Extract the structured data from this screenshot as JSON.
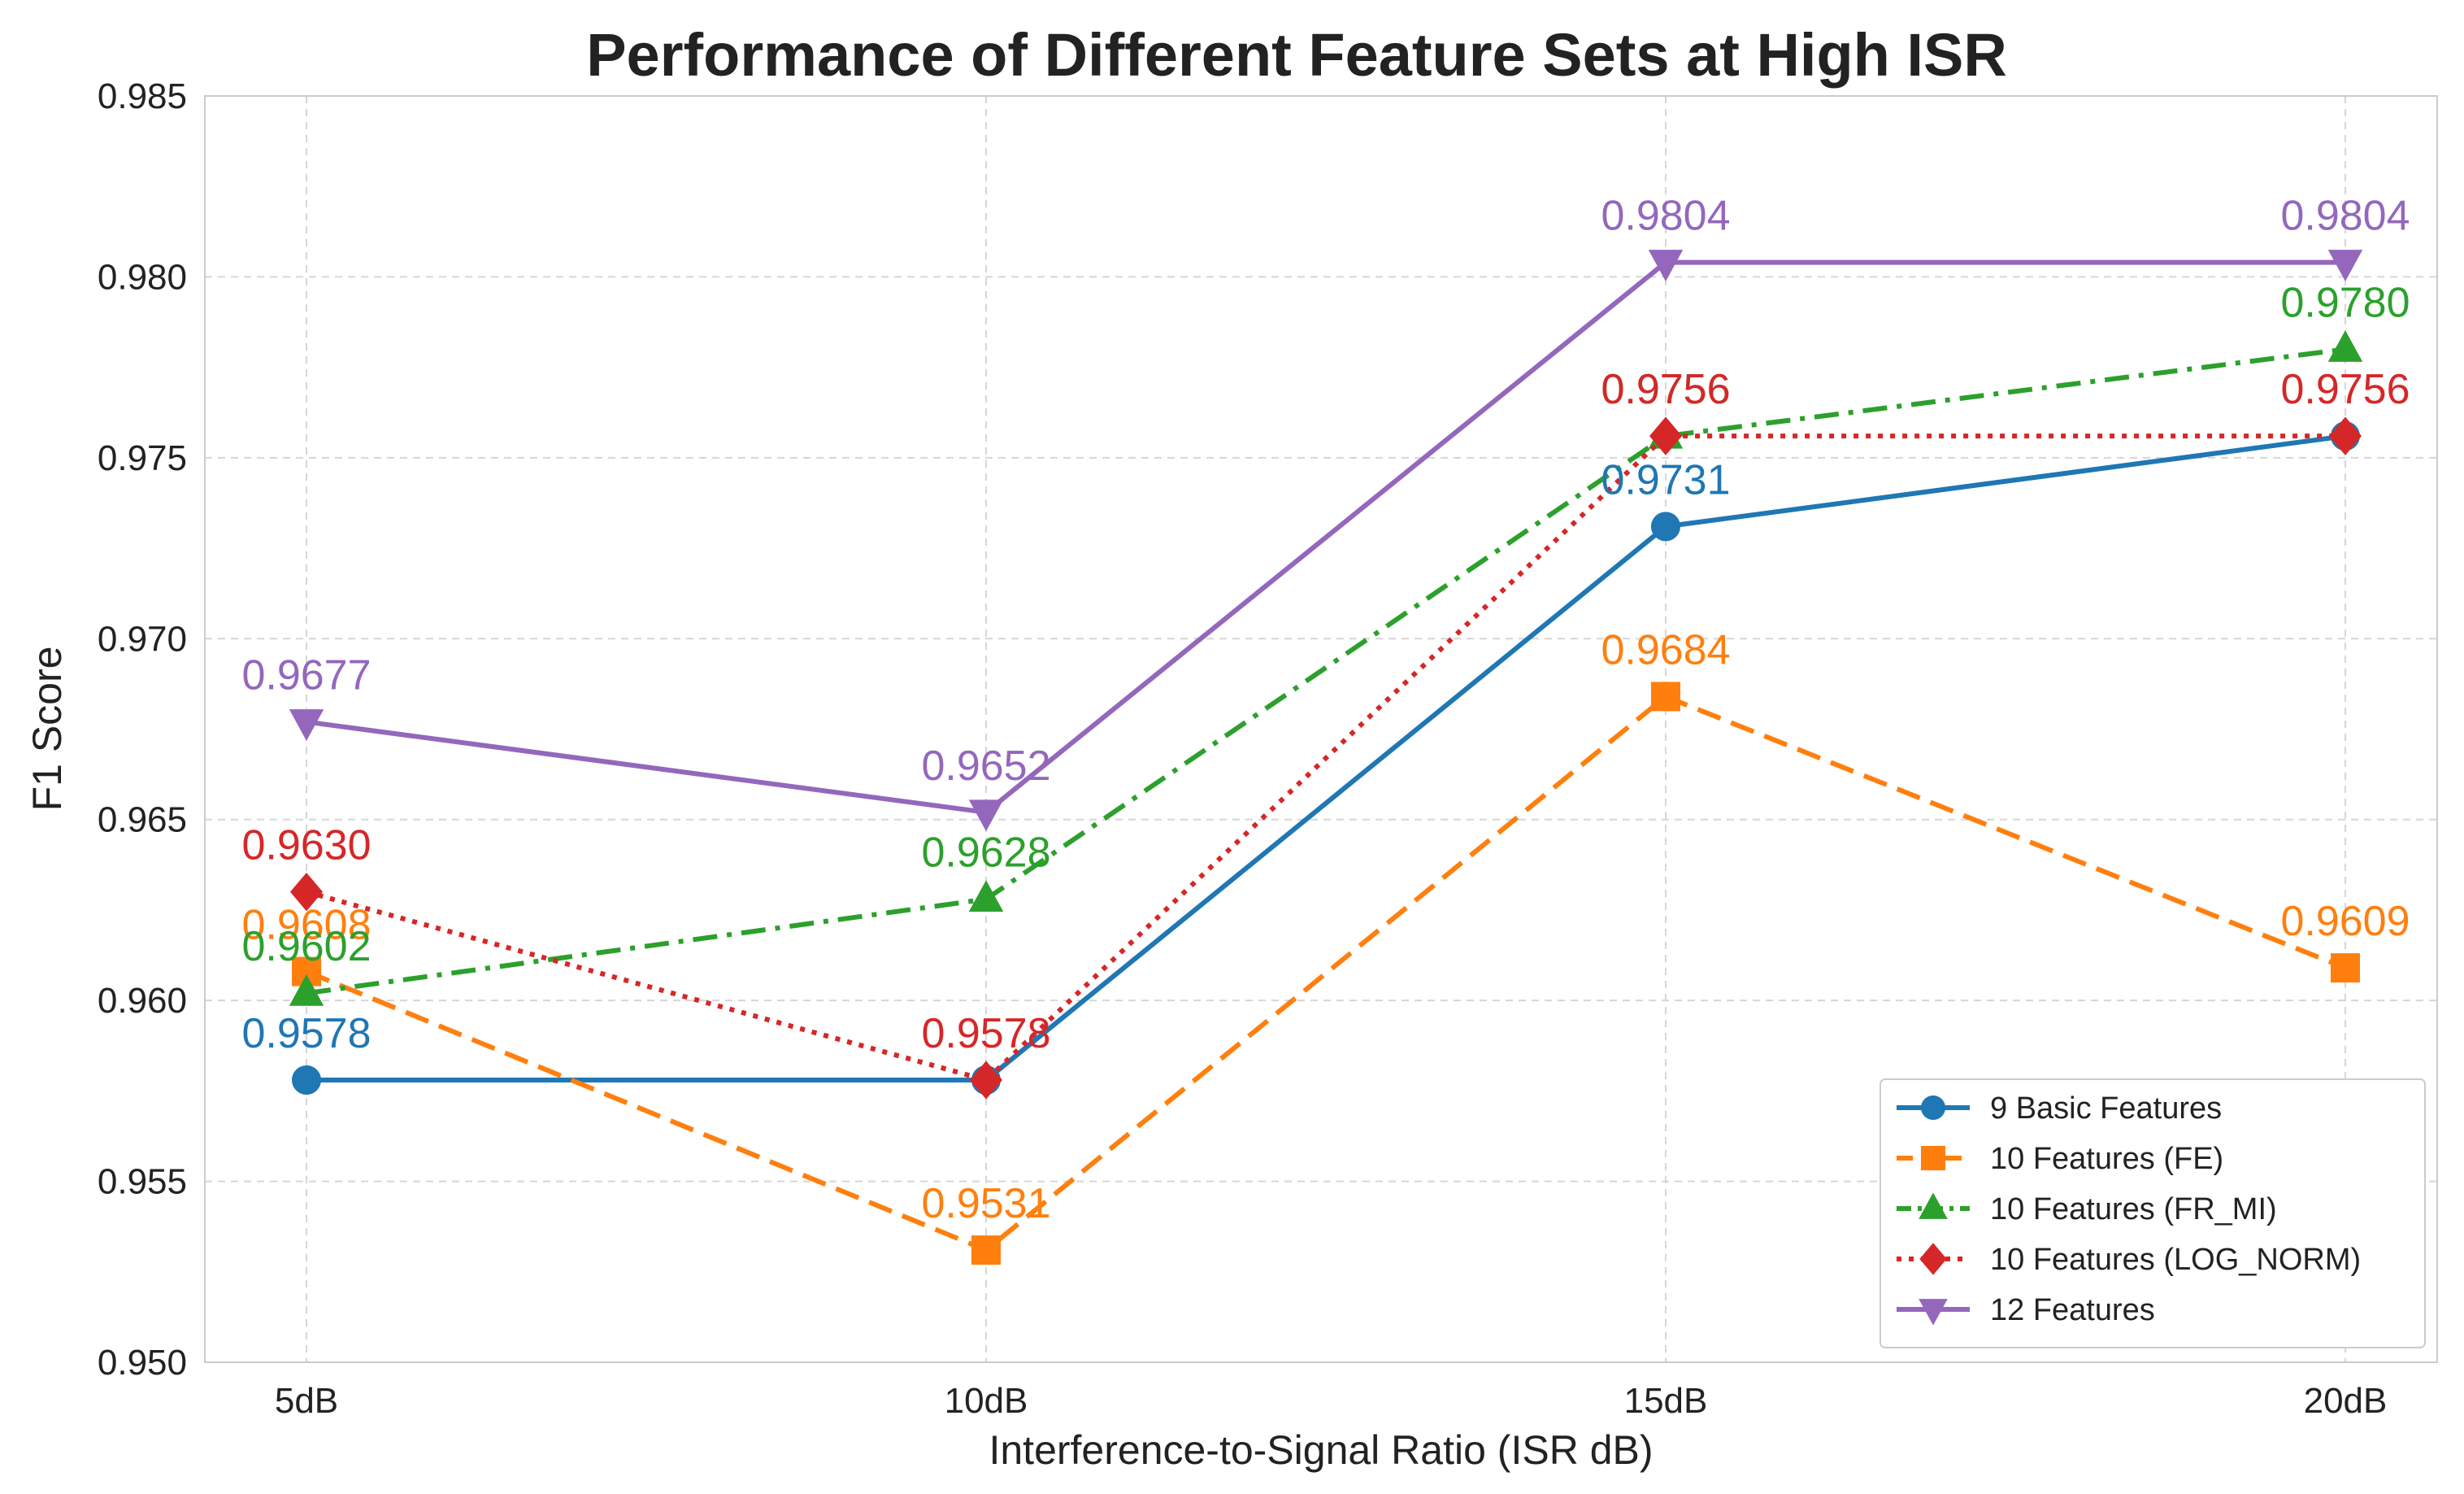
{
  "chart_data": {
    "type": "line",
    "title": "Performance of Different Feature Sets at High ISR",
    "xlabel": "Interference-to-Signal Ratio (ISR dB)",
    "ylabel": "F1 Score",
    "categories": [
      "5dB",
      "10dB",
      "15dB",
      "20dB"
    ],
    "ylim": [
      0.95,
      0.985
    ],
    "yticks": [
      "0.950",
      "0.955",
      "0.960",
      "0.965",
      "0.970",
      "0.975",
      "0.980",
      "0.985"
    ],
    "grid": true,
    "legend_position": "bottom-right",
    "series": [
      {
        "name": "9 Basic Features",
        "values": [
          0.9578,
          0.9578,
          0.9731,
          0.9756
        ],
        "labels": [
          "0.9578",
          "",
          "0.9731",
          ""
        ],
        "color": "#1f77b4",
        "marker": "circle",
        "linestyle": "solid"
      },
      {
        "name": "10 Features (FE)",
        "values": [
          0.9608,
          0.9531,
          0.9684,
          0.9609
        ],
        "labels": [
          "0.9608",
          "0.9531",
          "0.9684",
          "0.9609"
        ],
        "color": "#ff7f0e",
        "marker": "square",
        "linestyle": "dashed"
      },
      {
        "name": "10 Features (FR_MI)",
        "values": [
          0.9602,
          0.9628,
          0.9756,
          0.978
        ],
        "labels": [
          "0.9602",
          "0.9628",
          "0.9756",
          "0.9780"
        ],
        "color": "#2ca02c",
        "marker": "triangle-up",
        "linestyle": "dashdot"
      },
      {
        "name": "10 Features (LOG_NORM)",
        "values": [
          0.963,
          0.9578,
          0.9756,
          0.9756
        ],
        "labels": [
          "0.9630",
          "0.9578",
          "0.9756",
          "0.9756"
        ],
        "color": "#d62728",
        "marker": "diamond",
        "linestyle": "dotted"
      },
      {
        "name": "12 Features",
        "values": [
          0.9677,
          0.9652,
          0.9804,
          0.9804
        ],
        "labels": [
          "0.9677",
          "0.9652",
          "0.9804",
          "0.9804"
        ],
        "color": "#9467bd",
        "marker": "triangle-down",
        "linestyle": "solid"
      }
    ]
  }
}
